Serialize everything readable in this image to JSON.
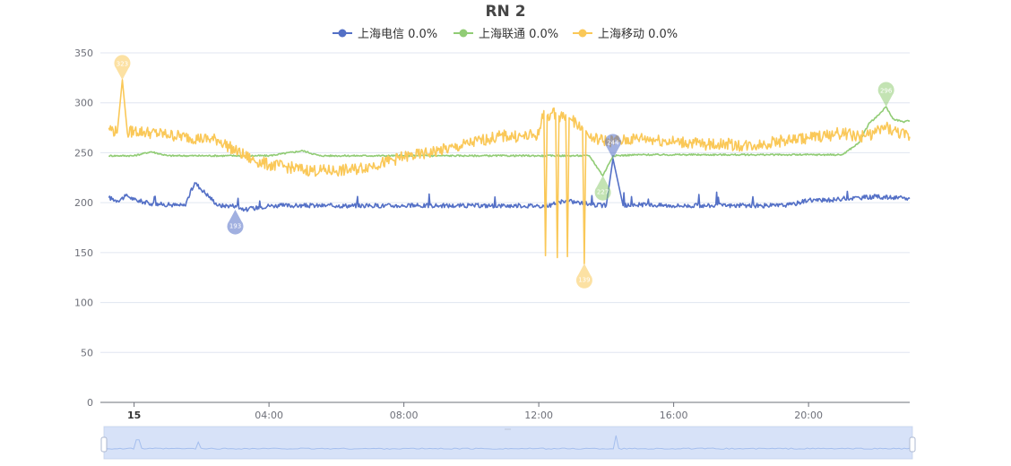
{
  "chart_data": {
    "type": "line",
    "title": "RN 2",
    "xlabel": "",
    "ylabel": "",
    "ylim": [
      0,
      350
    ],
    "yticks": [
      0,
      50,
      100,
      150,
      200,
      250,
      300,
      350
    ],
    "xlim": [
      -1.0,
      23.0
    ],
    "xticks": [
      {
        "x": 0,
        "label": "15",
        "bold": true
      },
      {
        "x": 4,
        "label": "04:00"
      },
      {
        "x": 8,
        "label": "08:00"
      },
      {
        "x": 12,
        "label": "12:00"
      },
      {
        "x": 16,
        "label": "16:00"
      },
      {
        "x": 20,
        "label": "20:00"
      }
    ],
    "grid": true,
    "legend_position": "top-center",
    "series": [
      {
        "name": "上海电信",
        "legend_label": "上海电信 0.0%",
        "color": "#5470c6",
        "x": [
          -0.75,
          -0.5,
          -0.2,
          0.0,
          0.5,
          1.0,
          1.5,
          1.8,
          2.5,
          3.0,
          3.3,
          4.0,
          5.0,
          6.0,
          7.0,
          8.0,
          9.0,
          10.0,
          11.0,
          12.0,
          12.3,
          12.8,
          13.2,
          13.6,
          14.0,
          14.2,
          14.5,
          15.0,
          16.0,
          17.0,
          18.0,
          19.0,
          19.5,
          20.0,
          20.5,
          21.0,
          21.5,
          22.0,
          22.5,
          23.0
        ],
        "y": [
          205,
          202,
          207,
          203,
          199,
          198,
          197,
          220,
          197,
          197,
          193,
          197,
          197,
          197,
          197,
          197,
          197,
          197,
          197,
          197,
          197,
          202,
          200,
          198,
          197,
          244,
          197,
          198,
          197,
          197,
          197,
          197,
          198,
          203,
          202,
          204,
          205,
          206,
          205,
          204
        ]
      },
      {
        "name": "上海联通",
        "legend_label": "上海联通 0.0%",
        "color": "#91cc75",
        "x": [
          -0.75,
          0.0,
          0.5,
          1.0,
          2.0,
          3.0,
          4.0,
          5.0,
          5.5,
          6.0,
          7.0,
          8.0,
          9.0,
          10.0,
          11.0,
          12.0,
          13.0,
          13.5,
          13.9,
          14.2,
          15.0,
          16.0,
          17.0,
          18.0,
          19.0,
          20.0,
          21.0,
          21.5,
          21.8,
          22.0,
          22.3,
          22.5,
          22.8,
          23.0
        ],
        "y": [
          247,
          247,
          251,
          247,
          247,
          247,
          247,
          252,
          247,
          247,
          247,
          247,
          247,
          247,
          247,
          247,
          247,
          247,
          227,
          247,
          248,
          248,
          248,
          248,
          248,
          248,
          248,
          260,
          280,
          285,
          296,
          284,
          281,
          282
        ]
      },
      {
        "name": "上海移动",
        "legend_label": "上海移动 0.0%",
        "color": "#fac858",
        "x": [
          -0.75,
          -0.5,
          -0.35,
          -0.2,
          0.0,
          0.5,
          1.0,
          1.5,
          2.0,
          2.5,
          3.0,
          3.5,
          4.0,
          4.5,
          5.0,
          5.5,
          6.0,
          6.5,
          7.0,
          7.5,
          8.0,
          8.5,
          9.0,
          9.5,
          10.0,
          10.5,
          11.0,
          11.5,
          12.0,
          12.15,
          12.2,
          12.25,
          12.5,
          12.55,
          12.6,
          12.8,
          12.85,
          12.9,
          13.0,
          13.3,
          13.35,
          13.4,
          13.5,
          14.0,
          14.5,
          15.0,
          15.5,
          16.0,
          16.5,
          17.0,
          17.5,
          18.0,
          18.5,
          19.0,
          19.5,
          20.0,
          20.5,
          21.0,
          21.5,
          22.0,
          22.3,
          22.5,
          23.0
        ],
        "y": [
          275,
          270,
          323,
          270,
          272,
          270,
          268,
          266,
          264,
          263,
          252,
          243,
          238,
          236,
          233,
          232,
          232,
          233,
          237,
          241,
          246,
          248,
          252,
          255,
          260,
          264,
          267,
          266,
          268,
          292,
          147,
          287,
          290,
          145,
          287,
          288,
          146,
          285,
          282,
          275,
          139,
          272,
          265,
          262,
          262,
          265,
          263,
          261,
          260,
          258,
          259,
          257,
          258,
          261,
          263,
          265,
          267,
          270,
          266,
          270,
          276,
          272,
          266
        ]
      }
    ],
    "markers": [
      {
        "series": "上海电信",
        "type": "min",
        "x": 3.0,
        "y": 193,
        "label": "193"
      },
      {
        "series": "上海电信",
        "type": "max",
        "x": 14.2,
        "y": 244,
        "label": "244"
      },
      {
        "series": "上海联通",
        "type": "min",
        "x": 13.9,
        "y": 227,
        "label": "227"
      },
      {
        "series": "上海联通",
        "type": "max",
        "x": 22.3,
        "y": 296,
        "label": "296"
      },
      {
        "series": "上海移动",
        "type": "min",
        "x": 13.35,
        "y": 139,
        "label": "139"
      },
      {
        "series": "上海移动",
        "type": "max",
        "x": -0.35,
        "y": 323,
        "label": "323"
      }
    ]
  }
}
